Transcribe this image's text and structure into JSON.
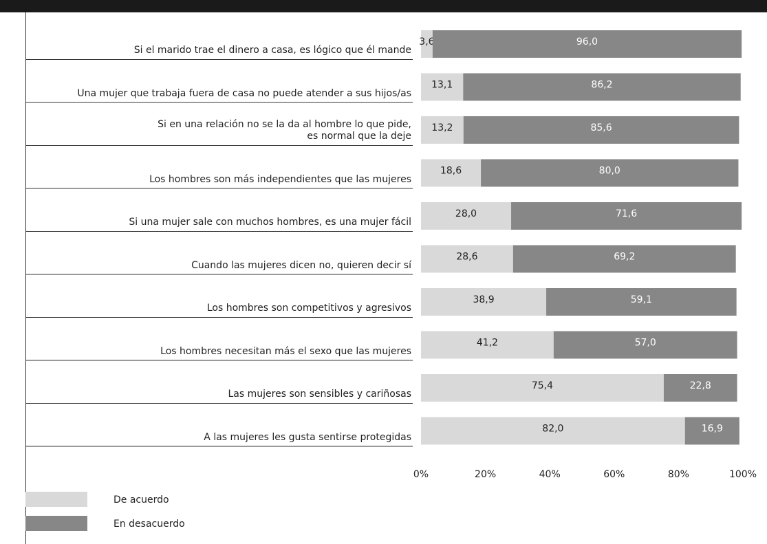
{
  "chart_data": {
    "type": "stacked_bar_horizontal",
    "categories": [
      "Si el marido trae el dinero a casa, es lógico que él mande",
      "Una mujer que trabaja fuera de casa no puede atender a sus hijos/as",
      "Si en una relación no se la da al hombre lo que pide,\nes normal que la deje",
      "Los hombres son más independientes que las mujeres",
      "Si una mujer sale con muchos hombres, es una mujer fácil",
      "Cuando las mujeres dicen no, quieren decir sí",
      "Los hombres son competitivos y agresivos",
      "Los hombres necesitan más el sexo que las mujeres",
      "Las mujeres son sensibles y cariñosas",
      "A las mujeres les gusta sentirse protegidas"
    ],
    "series": [
      {
        "name": "De acuerdo",
        "color": "#d9d9d9",
        "values": [
          3.6,
          13.1,
          13.2,
          18.6,
          28.0,
          28.6,
          38.9,
          41.2,
          75.4,
          82.0
        ],
        "value_labels": [
          "3,6",
          "13,1",
          "13,2",
          "18,6",
          "28,0",
          "28,6",
          "38,9",
          "41,2",
          "75,4",
          "82,0"
        ]
      },
      {
        "name": "En desacuerdo",
        "color": "#878787",
        "values": [
          96.0,
          86.2,
          85.6,
          80.0,
          71.6,
          69.2,
          59.1,
          57.0,
          22.8,
          16.9
        ],
        "value_labels": [
          "96,0",
          "86,2",
          "85,6",
          "80,0",
          "71,6",
          "69,2",
          "59,1",
          "57,0",
          "22,8",
          "16,9"
        ]
      }
    ],
    "xlim": [
      0,
      100
    ],
    "xticks": [
      {
        "value": 0,
        "label": "0%"
      },
      {
        "value": 20,
        "label": "20%"
      },
      {
        "value": 40,
        "label": "40%"
      },
      {
        "value": 60,
        "label": "60%"
      },
      {
        "value": 80,
        "label": "80%"
      },
      {
        "value": 100,
        "label": "100%"
      }
    ]
  }
}
